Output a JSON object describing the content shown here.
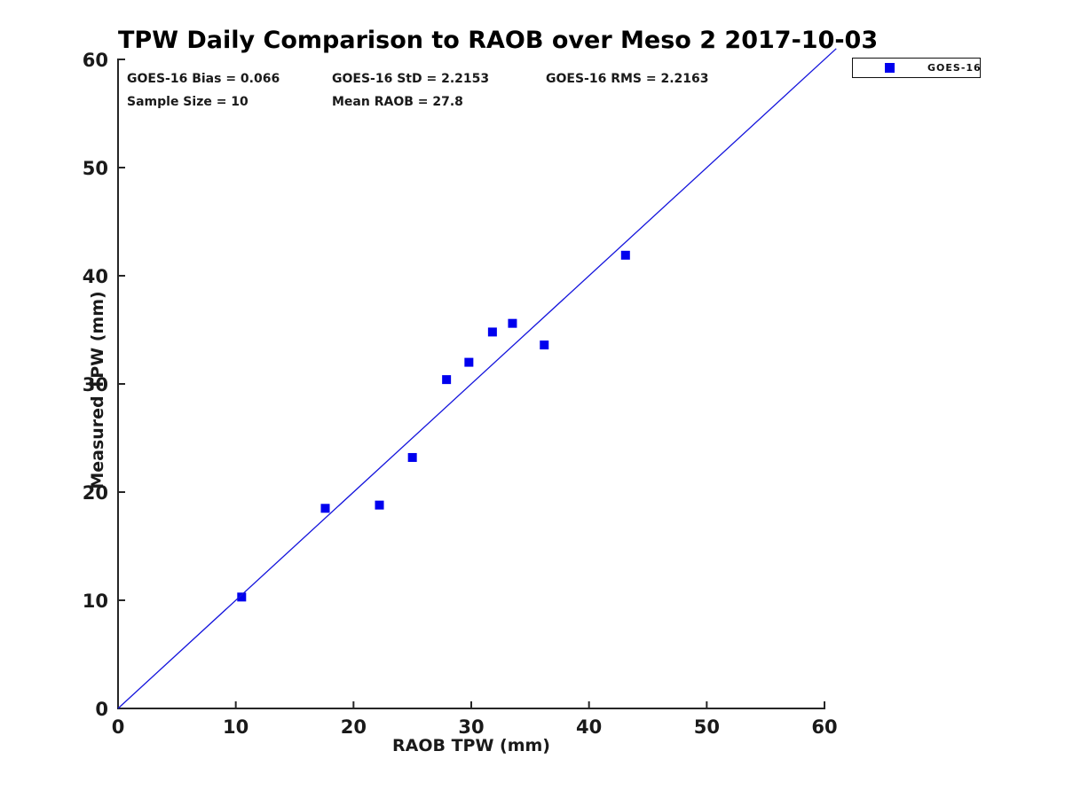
{
  "figure": {
    "title": "TPW Daily Comparison to RAOB over Meso 2 2017-10-03",
    "stats": {
      "bias": "GOES-16 Bias = 0.066",
      "std": "GOES-16 StD = 2.2153",
      "rms": "GOES-16 RMS = 2.2163",
      "sample": "Sample Size = 10",
      "mean_raob": "Mean RAOB = 27.8"
    },
    "legend": {
      "label": "GOES-16",
      "marker_color": "#0000ee",
      "position": "top-right-outside"
    }
  },
  "chart_data": {
    "type": "scatter",
    "title": "TPW Daily Comparison to RAOB over Meso 2 2017-10-03",
    "xlabel": "RAOB TPW (mm)",
    "ylabel": "Measured TPW (mm)",
    "xlim": [
      0,
      60
    ],
    "ylim": [
      0,
      60
    ],
    "xticks": [
      0,
      10,
      20,
      30,
      40,
      50,
      60
    ],
    "yticks": [
      0,
      10,
      20,
      30,
      40,
      50,
      60
    ],
    "grid": false,
    "legend_entries": [
      {
        "label": "GOES-16",
        "marker": "square",
        "color": "#0000ee"
      }
    ],
    "series": [
      {
        "name": "GOES-16",
        "type": "scatter",
        "marker": "square",
        "color": "#0000ee",
        "points": [
          [
            10.5,
            10.3
          ],
          [
            17.6,
            18.5
          ],
          [
            22.2,
            18.8
          ],
          [
            25.0,
            23.2
          ],
          [
            27.9,
            30.4
          ],
          [
            29.8,
            32.0
          ],
          [
            31.8,
            34.8
          ],
          [
            33.5,
            35.6
          ],
          [
            36.2,
            33.6
          ],
          [
            43.1,
            41.9
          ]
        ]
      },
      {
        "name": "one-to-one-reference-line",
        "type": "line",
        "color": "#1414dc",
        "points": [
          [
            0,
            0
          ],
          [
            61,
            61
          ]
        ]
      }
    ],
    "annotations": [
      "GOES-16 Bias = 0.066",
      "GOES-16 StD = 2.2153",
      "GOES-16 RMS = 2.2163",
      "Sample Size = 10",
      "Mean RAOB = 27.8"
    ]
  }
}
